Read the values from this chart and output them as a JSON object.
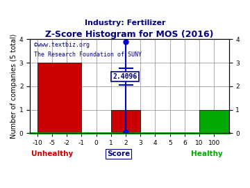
{
  "title": "Z-Score Histogram for MOS (2016)",
  "subtitle": "Industry: Fertilizer",
  "watermark1": "©www.textbiz.org",
  "watermark2": "The Research Foundation of SUNY",
  "xlabel_center": "Score",
  "xlabel_left": "Unhealthy",
  "xlabel_right": "Healthy",
  "ylabel": "Number of companies (5 total)",
  "tick_labels": [
    "-10",
    "-5",
    "-2",
    "-1",
    "0",
    "1",
    "2",
    "3",
    "4",
    "5",
    "6",
    "10",
    "100"
  ],
  "tick_positions": [
    0,
    1,
    2,
    3,
    4,
    5,
    6,
    7,
    8,
    9,
    10,
    11,
    12
  ],
  "bar_data": [
    {
      "bin_start_idx": 0,
      "bin_end_idx": 3,
      "height": 3,
      "color": "#cc0000"
    },
    {
      "bin_start_idx": 5,
      "bin_end_idx": 7,
      "height": 1,
      "color": "#cc0000"
    },
    {
      "bin_start_idx": 11,
      "bin_end_idx": 13,
      "height": 1,
      "color": "#00aa00"
    }
  ],
  "zscore_value": 2.4096,
  "zscore_tick_idx": 6,
  "zscore_std_half": 0.35,
  "top_y": 3.88,
  "bot_y": 0.05,
  "xlim": [
    -0.5,
    13.0
  ],
  "ylim": [
    0,
    4
  ],
  "yticks": [
    0,
    1,
    2,
    3,
    4
  ],
  "grid_color": "#888888",
  "title_color": "#000080",
  "subtitle_color": "#000080",
  "watermark_color": "#000080",
  "unhealthy_color": "#cc0000",
  "healthy_color": "#00aa00",
  "score_color": "#000080",
  "zscore_line_color": "#0000cc",
  "zscore_box_color": "#000080",
  "zscore_box_bg": "#ffffff",
  "background_color": "#ffffff",
  "title_fontsize": 9,
  "subtitle_fontsize": 8,
  "label_fontsize": 7,
  "tick_fontsize": 6.5,
  "watermark_fontsize": 6,
  "annotation_fontsize": 7
}
